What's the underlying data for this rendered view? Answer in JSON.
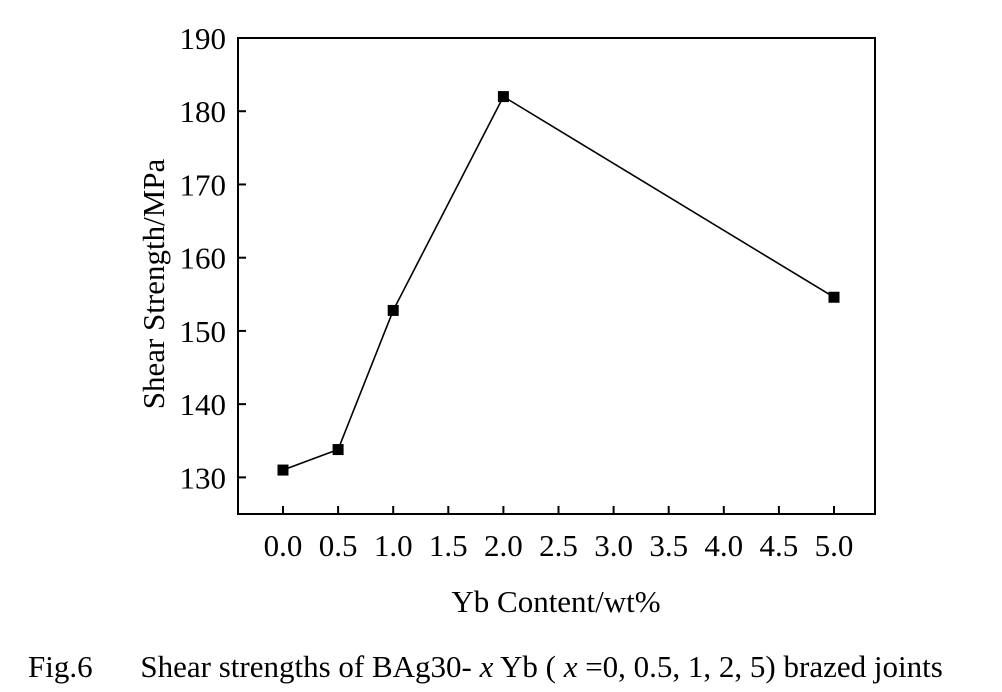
{
  "chart_data": {
    "type": "line",
    "title": "",
    "xlabel": "Yb Content/wt%",
    "ylabel": "Shear Strength/MPa",
    "ylim": [
      125,
      190
    ],
    "yticks": [
      130,
      140,
      150,
      160,
      170,
      180,
      190
    ],
    "xtick_labels": [
      "0.0",
      "0.5",
      "1.0",
      "1.5",
      "2.0",
      "2.5",
      "3.0",
      "3.5",
      "4.0",
      "4.5",
      "5.0"
    ],
    "xtick_positions": [
      0,
      0.5,
      1,
      1.5,
      2,
      2.5,
      3,
      3.5,
      4,
      4.5,
      5
    ],
    "axis_break": "Category-like axis: visible spacing is uniform per tick (2.5–4.5 compressed)",
    "grid": false,
    "legend": "none",
    "marker": "square",
    "series": [
      {
        "x": [
          0,
          0.5,
          1,
          2,
          5
        ],
        "y": [
          131,
          133.8,
          152.8,
          182,
          154.6
        ]
      }
    ],
    "colors": {
      "line": "#000000",
      "marker": "#000000",
      "axis": "#000000"
    }
  },
  "caption": {
    "prefix": "Fig.6",
    "text_1": "Shear strengths of BAg30-",
    "var_x": "x",
    "text_2": "Yb (",
    "var_x2": "x",
    "text_3": "=0, 0.5, 1, 2, 5) brazed joints"
  }
}
